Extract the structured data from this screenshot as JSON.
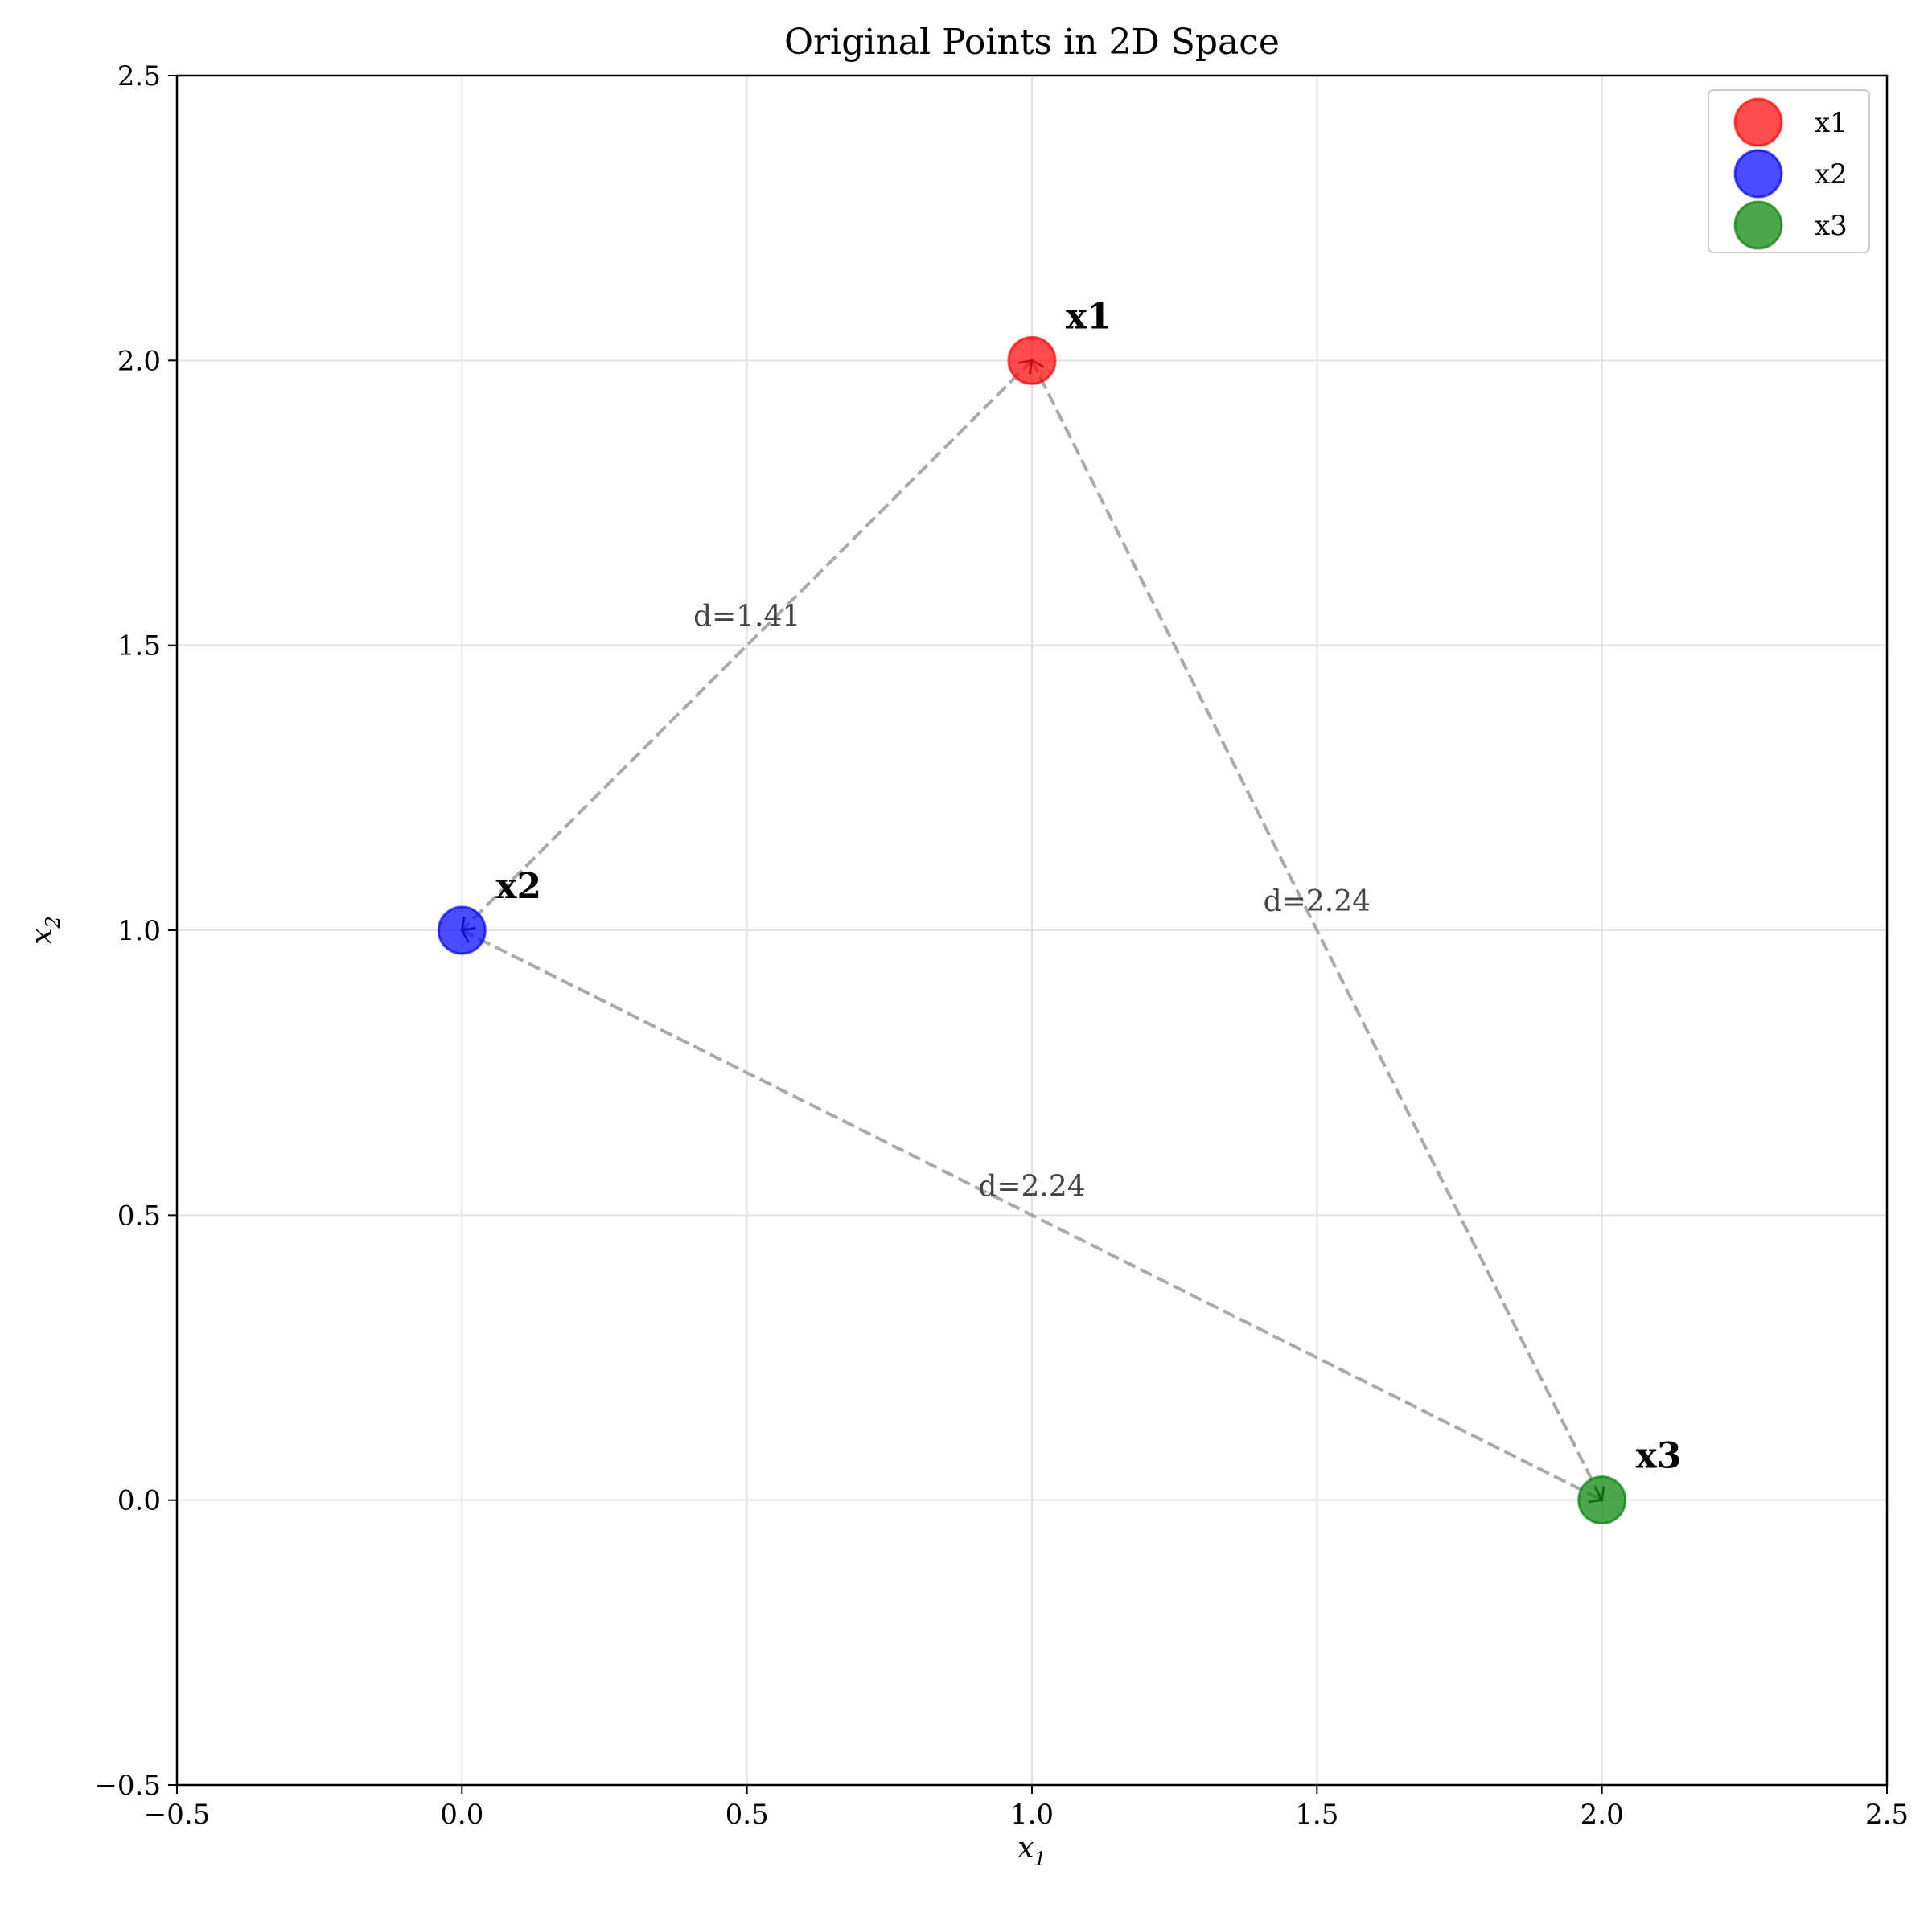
{
  "chart_data": {
    "type": "scatter",
    "title": "Original Points in 2D Space",
    "xlabel": "x",
    "xlabel_sub": "1",
    "ylabel": "x",
    "ylabel_sub": "2",
    "xlim": [
      -0.5,
      2.5
    ],
    "ylim": [
      -0.5,
      2.5
    ],
    "xticks": [
      "−0.5",
      "0.0",
      "0.5",
      "1.0",
      "1.5",
      "2.0",
      "2.5"
    ],
    "xtick_values": [
      -0.5,
      0.0,
      0.5,
      1.0,
      1.5,
      2.0,
      2.5
    ],
    "yticks": [
      "−0.5",
      "0.0",
      "0.5",
      "1.0",
      "1.5",
      "2.0",
      "2.5"
    ],
    "ytick_values": [
      -0.5,
      0.0,
      0.5,
      1.0,
      1.5,
      2.0,
      2.5
    ],
    "grid": true,
    "legend_position": "top-right",
    "series": [
      {
        "name": "x1",
        "x": [
          1.0
        ],
        "y": [
          2.0
        ],
        "color": "#ff0000"
      },
      {
        "name": "x2",
        "x": [
          0.0
        ],
        "y": [
          1.0
        ],
        "color": "#0000ff"
      },
      {
        "name": "x3",
        "x": [
          2.0
        ],
        "y": [
          0.0
        ],
        "color": "#008000"
      }
    ],
    "point_labels": [
      {
        "text": "x1",
        "x": 1.0,
        "y": 2.0
      },
      {
        "text": "x2",
        "x": 0.0,
        "y": 1.0
      },
      {
        "text": "x3",
        "x": 2.0,
        "y": 0.0
      }
    ],
    "connections": [
      {
        "from": [
          1.0,
          2.0
        ],
        "to": [
          0.0,
          1.0
        ],
        "label": "d=1.41",
        "color": "#aaaaaa",
        "style": "dashed"
      },
      {
        "from": [
          1.0,
          2.0
        ],
        "to": [
          2.0,
          0.0
        ],
        "label": "d=2.24",
        "color": "#aaaaaa",
        "style": "dashed"
      },
      {
        "from": [
          0.0,
          1.0
        ],
        "to": [
          2.0,
          0.0
        ],
        "label": "d=2.24",
        "color": "#aaaaaa",
        "style": "dashed"
      }
    ]
  }
}
